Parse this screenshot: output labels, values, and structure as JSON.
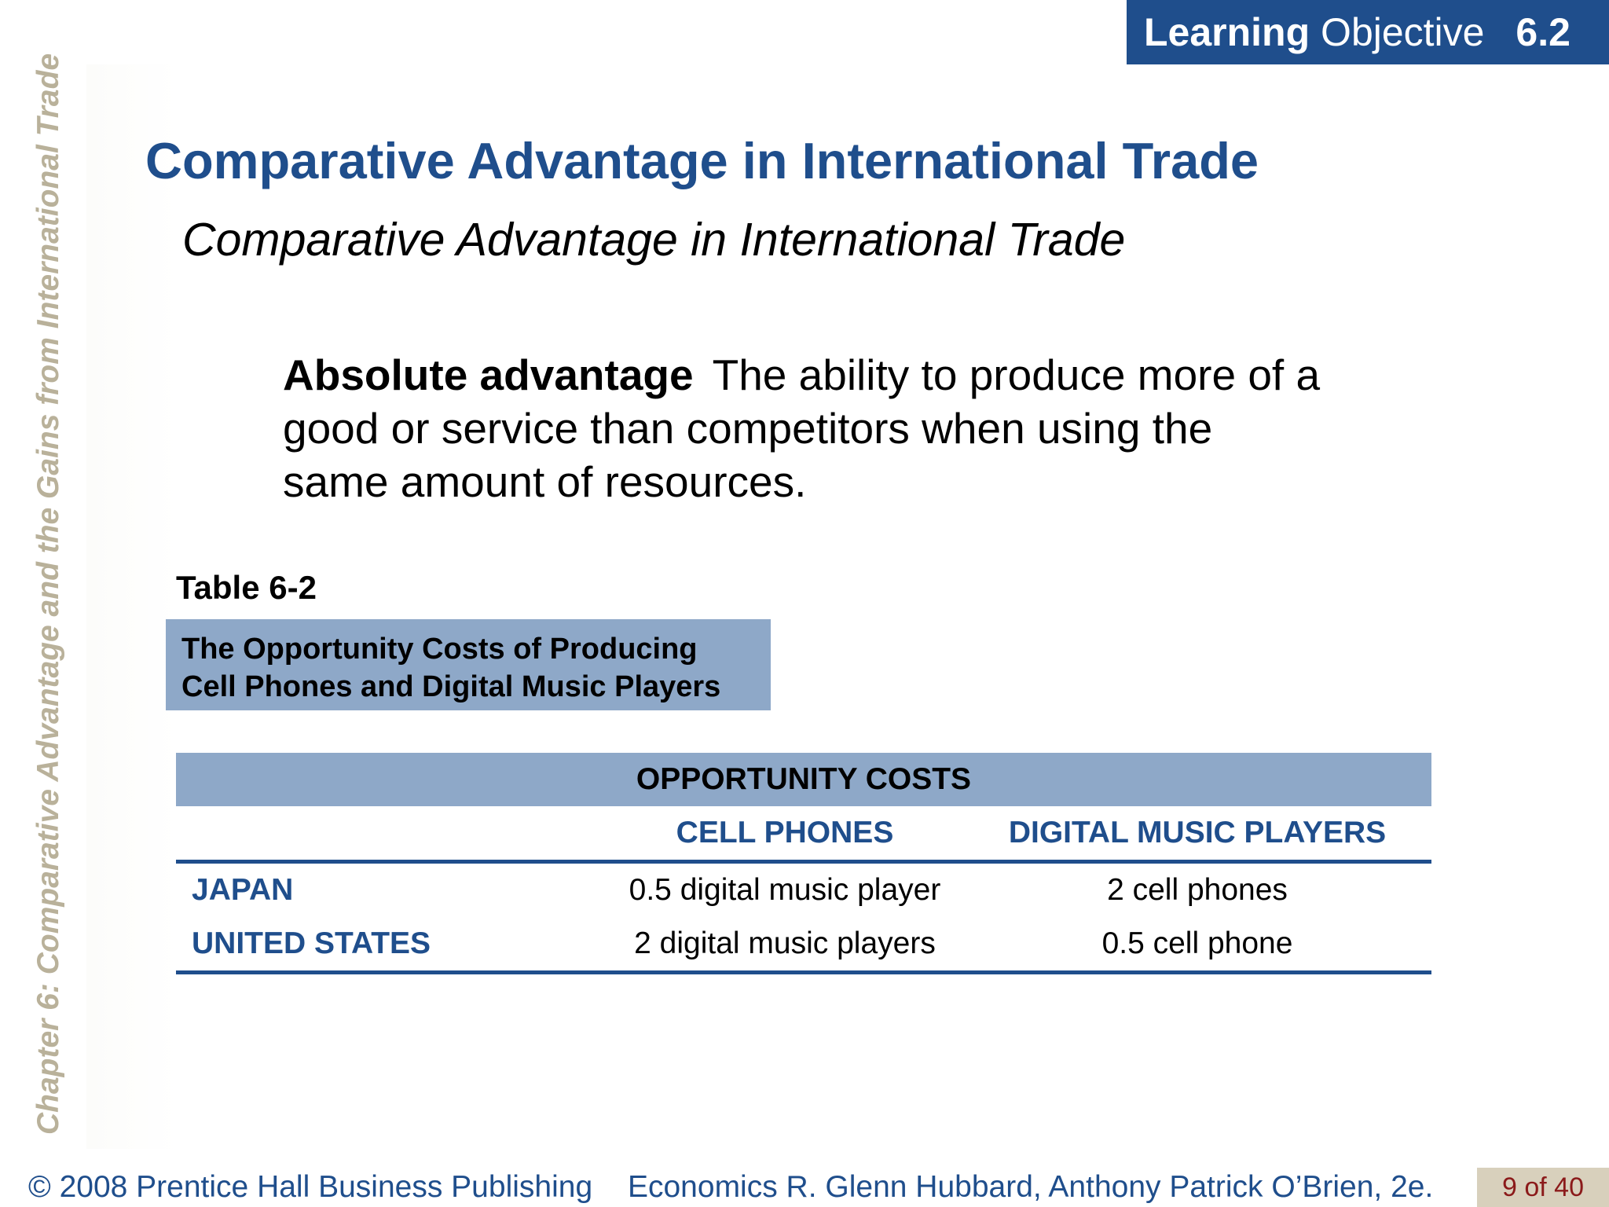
{
  "learning_objective": {
    "word1": "Learning",
    "word2": "Objective",
    "number": "6.2"
  },
  "chapter_sidebar": "Chapter 6:  Comparative Advantage and the Gains from International Trade",
  "title": "Comparative Advantage in International Trade",
  "subtitle": "Comparative Advantage in International Trade",
  "definition": {
    "term": "Absolute advantage",
    "text": "The ability to produce more of a good or service than competitors when using the same amount of resources."
  },
  "table": {
    "label": "Table 6-2",
    "caption_line1": "The Opportunity Costs of Producing",
    "caption_line2": "Cell Phones and Digital Music Players",
    "header": "OPPORTUNITY COSTS",
    "columns": [
      "",
      "CELL PHONES",
      "DIGITAL MUSIC PLAYERS"
    ],
    "rows": [
      {
        "country": "JAPAN",
        "cell_phones": "0.5 digital music player",
        "music_players": "2 cell phones"
      },
      {
        "country": "UNITED STATES",
        "cell_phones": "2 digital music players",
        "music_players": "0.5 cell phone"
      }
    ]
  },
  "footer": {
    "copyright": "© 2008 Prentice Hall Business Publishing",
    "book": "Economics  R. Glenn Hubbard, Anthony Patrick O’Brien, 2e.",
    "page": "9 of 40"
  },
  "colors": {
    "brand_blue": "#1f4e8c",
    "table_fill": "#8ea8c8",
    "sidebar_text": "#b9b19a",
    "page_badge_fill": "#d8d0bc",
    "page_badge_text": "#8b1a1a"
  }
}
